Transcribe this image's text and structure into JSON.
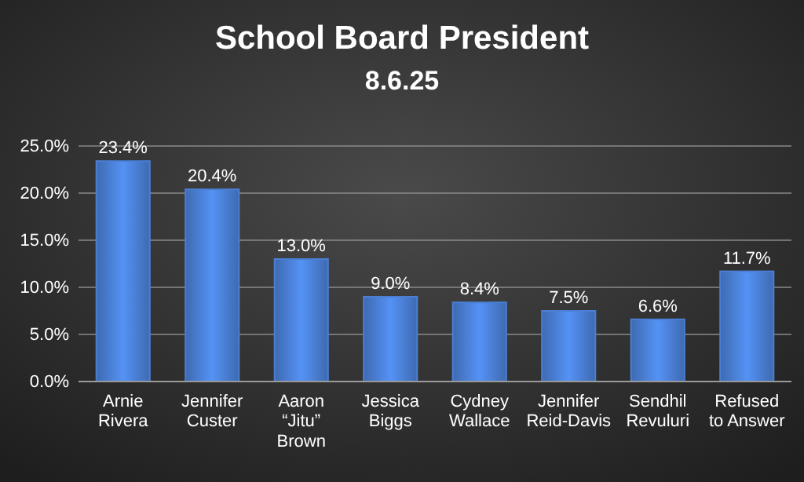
{
  "chart_data": {
    "type": "bar",
    "title": "School Board President",
    "subtitle": "8.6.25",
    "categories": [
      "Arnie Rivera",
      "Jennifer Custer",
      "Aaron “Jitu” Brown",
      "Jessica Biggs",
      "Cydney Wallace",
      "Jennifer Reid-Davis",
      "Sendhil Revuluri",
      "Refused to Answer"
    ],
    "values": [
      23.4,
      20.4,
      13.0,
      9.0,
      8.4,
      7.5,
      6.6,
      11.7
    ],
    "value_labels": [
      "23.4%",
      "20.4%",
      "13.0%",
      "9.0%",
      "8.4%",
      "7.5%",
      "6.6%",
      "11.7%"
    ],
    "color": "#4a7fd4",
    "ylim": [
      0,
      25
    ],
    "yticks": [
      {
        "value": 0,
        "label": "0.0%"
      },
      {
        "value": 5,
        "label": "5.0%"
      },
      {
        "value": 10,
        "label": "10.0%"
      },
      {
        "value": 15,
        "label": "15.0%"
      },
      {
        "value": 20,
        "label": "20.0%"
      },
      {
        "value": 25,
        "label": "25.0%"
      }
    ],
    "grid": "y"
  }
}
